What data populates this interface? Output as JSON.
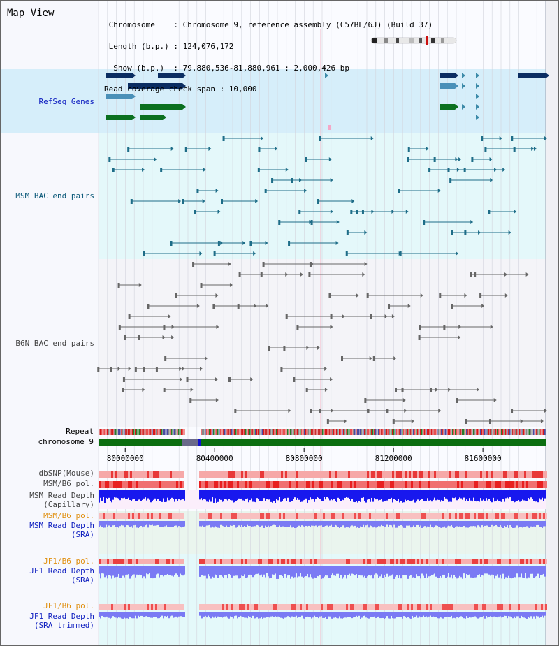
{
  "view_title": "Map View",
  "info": {
    "line1": " Chromosome    : Chromosome 9, reference assembly (C57BL/6J) (Build 37)",
    "line2": " Length (b.p.) : 124,076,172",
    "line3": "  Show (b.p.)  : 79,880,536-81,880,961 : 2,000,426 bp",
    "line4": "Read coverage check span : 10,000"
  },
  "tracks": {
    "refseq": "RefSeq Genes",
    "msm_bac": "MSM BAC end pairs",
    "b6n_bac": "B6N BAC end pairs",
    "repeat": "Repeat",
    "chromosome": "chromosome 9",
    "dbsnp": "dbSNP(Mouse)",
    "msm_b6_pol": "MSM/B6 pol.",
    "msm_depth_cap_1": "MSM Read Depth",
    "msm_depth_cap_2": "(Capillary)",
    "msm_b6_pol_sra": "MSM/B6 pol.",
    "msm_depth_sra_1": "MSM Read Depth",
    "msm_depth_sra_2": "(SRA)",
    "jf1_pol_1": "JF1/B6 pol.",
    "jf1_depth_1": "JF1 Read Depth",
    "jf1_depth_1b": "(SRA)",
    "jf1_pol_2": "JF1/B6 pol.",
    "jf1_depth_2": "JF1 Read Depth",
    "jf1_depth_2b": "(SRA trimmed)"
  },
  "axis": {
    "ticks": [
      "80000000",
      "80400000",
      "80800000",
      "81200000",
      "81600000"
    ],
    "range_bp": [
      79880536,
      81880961
    ]
  },
  "colors": {
    "refseq_bg": "#d6eefa",
    "msm_bg": "#e4f8fa",
    "b6n_bg": "#f4f4f8",
    "label_blue": "#1020c0",
    "label_orange": "#e09010",
    "label_teal": "#0a5878",
    "chromosome_green": "#0b6e10",
    "gene_navy": "#0b2d62",
    "gene_green": "#0b7020",
    "depth_blue": "#1818ee",
    "depth_light_blue": "#7a7af4",
    "pol_red": "#e82020"
  }
}
